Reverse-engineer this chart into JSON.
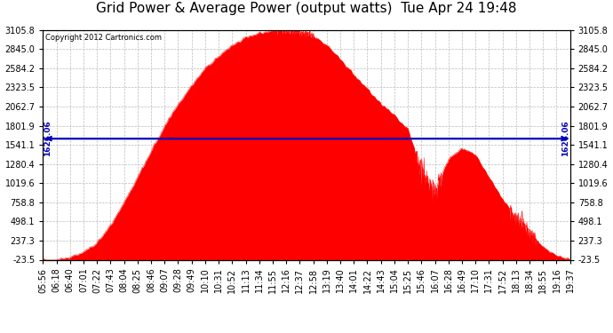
{
  "title": "Grid Power & Average Power (output watts)  Tue Apr 24 19:48",
  "copyright": "Copyright 2012 Cartronics.com",
  "avg_power": 1626.06,
  "y_ticks": [
    -23.5,
    237.3,
    498.1,
    758.8,
    1019.6,
    1280.4,
    1541.1,
    1801.9,
    2062.7,
    2323.5,
    2584.2,
    2845.0,
    3105.8
  ],
  "x_labels": [
    "05:56",
    "06:18",
    "06:40",
    "07:01",
    "07:22",
    "07:43",
    "08:04",
    "08:25",
    "08:46",
    "09:07",
    "09:28",
    "09:49",
    "10:10",
    "10:31",
    "10:52",
    "11:13",
    "11:34",
    "11:55",
    "12:16",
    "12:37",
    "12:58",
    "13:19",
    "13:40",
    "14:01",
    "14:22",
    "14:43",
    "15:04",
    "15:25",
    "15:46",
    "16:07",
    "16:28",
    "16:49",
    "17:10",
    "17:31",
    "17:52",
    "18:13",
    "18:34",
    "18:55",
    "19:16",
    "19:37"
  ],
  "fill_color": "#FF0000",
  "line_color": "#0000BB",
  "bg_color": "#FFFFFF",
  "plot_bg": "#FFFFFF",
  "grid_color": "#BBBBBB",
  "title_fontsize": 11,
  "tick_fontsize": 7,
  "y_min": -23.5,
  "y_max": 3105.8
}
